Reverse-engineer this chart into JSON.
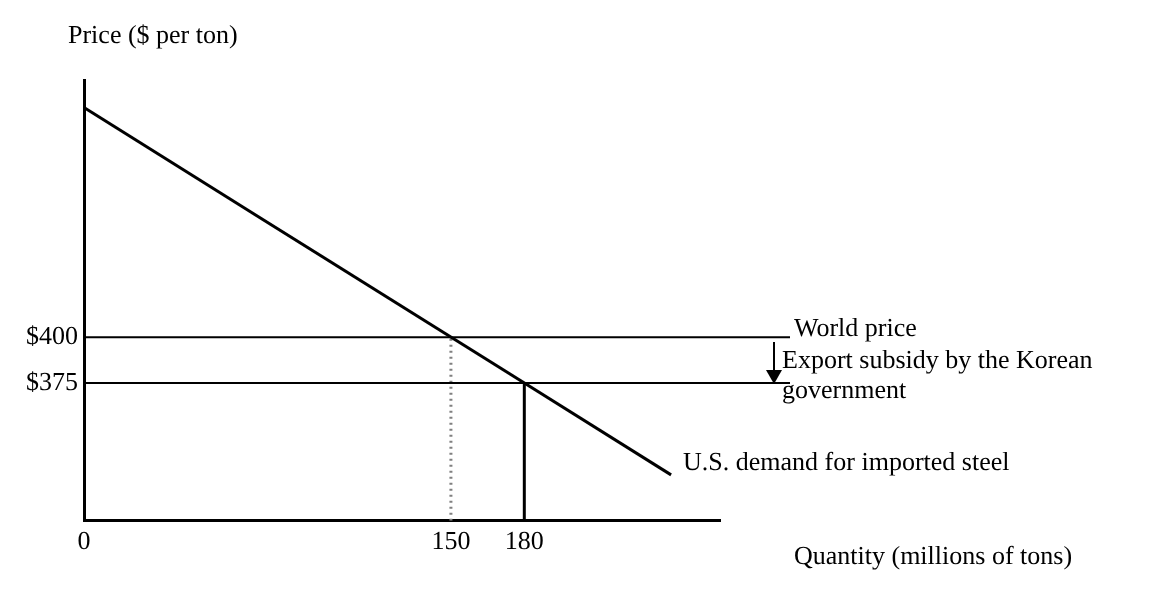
{
  "chart_data": {
    "type": "line",
    "xlabel": "Quantity (millions of tons)",
    "ylabel": "Price ($ per ton)",
    "xlim": [
      0,
      260
    ],
    "xticks": [
      0,
      150,
      180
    ],
    "ylim": [
      300,
      540
    ],
    "yticks": [
      {
        "value": 375,
        "label": "$375"
      },
      {
        "value": 400,
        "label": "$400"
      }
    ],
    "grid": false,
    "legend": false,
    "marker": "none",
    "series": [
      {
        "name": "U.S. demand for imported steel",
        "color": "#000000",
        "x": [
          0,
          240
        ],
        "values": [
          525,
          325
        ]
      },
      {
        "color": "#808080",
        "x": [
          150,
          150
        ],
        "values": [
          300,
          400
        ],
        "line_style": "dotted"
      },
      {
        "color": "#000000",
        "x": [
          180,
          180
        ],
        "values": [
          300,
          375
        ]
      }
    ],
    "ref_lines": [
      {
        "axis": "y",
        "value": 400,
        "label": "World price",
        "color": "#000000"
      },
      {
        "axis": "y",
        "value": 375,
        "label": null,
        "color": "#000000"
      }
    ],
    "annotations": [
      "Export subsidy by the Korean government"
    ]
  }
}
